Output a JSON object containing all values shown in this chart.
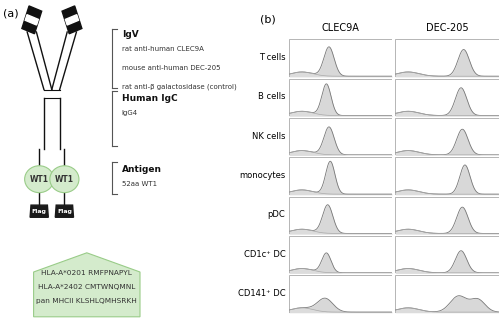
{
  "panel_a_label": "(a)",
  "panel_b_label": "(b)",
  "igv_bold": "IgV",
  "igv_lines": [
    "rat anti-human CLEC9A",
    "mouse anti-human DEC-205",
    "rat anti-β galactosidase (control)"
  ],
  "igc_bold": "Human IgC",
  "igc_lines": [
    "IgG4"
  ],
  "antigen_bold": "Antigen",
  "antigen_lines": [
    "52aa WT1"
  ],
  "wt1_label": "WT1",
  "flag_label": "Flag",
  "box_text_lines": [
    "HLA-A*0201 RMFPNAPYL",
    "HLA-A*2402 CMTWNQMNL",
    "pan MHCII KLSHLQMHSRKH"
  ],
  "col_labels": [
    "CLEC9A",
    "DEC-205"
  ],
  "row_labels": [
    "T cells",
    "B cells",
    "NK cells",
    "monocytes",
    "pDC",
    "CD1c⁺ DC",
    "CD141⁺ DC"
  ],
  "background_color": "#ffffff",
  "line_color": "#888888",
  "fill_color": "#cccccc",
  "fill_color2": "#e0e0e0",
  "green_fill": "#d4ebcc",
  "green_border": "#99cc88",
  "flag_bg": "#1a1a1a",
  "flag_text": "#ffffff",
  "body_color": "#111111",
  "bracket_color": "#555555",
  "ann_color": "#333333"
}
